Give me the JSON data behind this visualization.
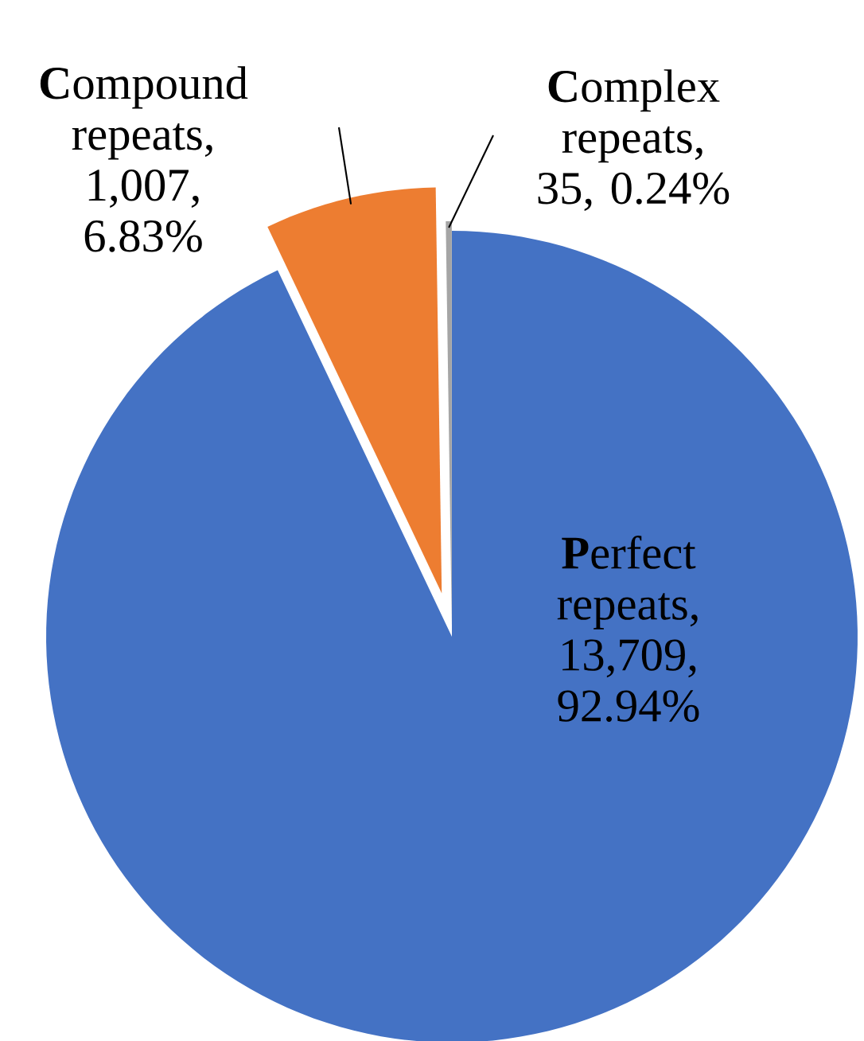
{
  "chart_data": {
    "type": "pie",
    "categories": [
      "**P**erfect repeats",
      "**C**ompound repeats",
      "**C**omplex repeats"
    ],
    "values": [
      13709,
      1007,
      35
    ],
    "value_labels": [
      ", 13,709, 92.94%",
      ", 1,007, 6.83%",
      ", 35, 0.24%"
    ],
    "colors": [
      "#4472c4",
      "#ed7d31",
      "#a5a5a5"
    ]
  }
}
